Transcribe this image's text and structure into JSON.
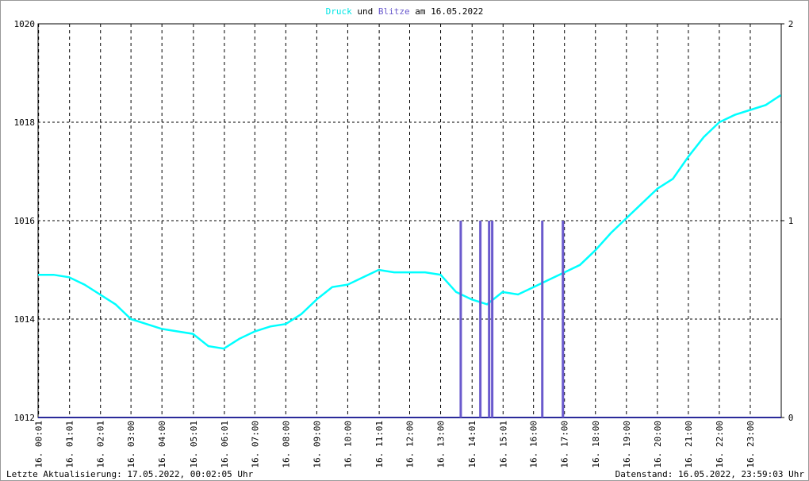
{
  "chart_data": {
    "type": "line",
    "title_connector": "und",
    "title_date": "am 16.05.2022",
    "footer_left": "Letzte Aktualisierung: 17.05.2022, 00:02:05 Uhr",
    "footer_right": "Datenstand: 16.05.2022, 23:59:03 Uhr",
    "grid": true,
    "xlim": [
      0,
      1440
    ],
    "xticks": [
      {
        "value": 1,
        "label": "16. 00:01"
      },
      {
        "value": 61,
        "label": "16. 01:01"
      },
      {
        "value": 121,
        "label": "16. 02:01"
      },
      {
        "value": 180,
        "label": "16. 03:00"
      },
      {
        "value": 240,
        "label": "16. 04:00"
      },
      {
        "value": 301,
        "label": "16. 05:01"
      },
      {
        "value": 361,
        "label": "16. 06:01"
      },
      {
        "value": 420,
        "label": "16. 07:00"
      },
      {
        "value": 480,
        "label": "16. 08:00"
      },
      {
        "value": 540,
        "label": "16. 09:00"
      },
      {
        "value": 600,
        "label": "16. 10:00"
      },
      {
        "value": 661,
        "label": "16. 11:01"
      },
      {
        "value": 720,
        "label": "16. 12:00"
      },
      {
        "value": 780,
        "label": "16. 13:00"
      },
      {
        "value": 841,
        "label": "16. 14:01"
      },
      {
        "value": 901,
        "label": "16. 15:01"
      },
      {
        "value": 960,
        "label": "16. 16:00"
      },
      {
        "value": 1020,
        "label": "16. 17:00"
      },
      {
        "value": 1080,
        "label": "16. 18:00"
      },
      {
        "value": 1140,
        "label": "16. 19:00"
      },
      {
        "value": 1200,
        "label": "16. 20:00"
      },
      {
        "value": 1260,
        "label": "16. 21:00"
      },
      {
        "value": 1320,
        "label": "16. 22:00"
      },
      {
        "value": 1380,
        "label": "16. 23:00"
      }
    ],
    "ylim": [
      1012,
      1020
    ],
    "yticks": [
      1012,
      1014,
      1016,
      1018,
      1020
    ],
    "y2lim": [
      0,
      2
    ],
    "y2ticks": [
      0,
      1,
      2
    ],
    "series": [
      {
        "name": "Druck",
        "color": "#00ffff",
        "x": [
          0,
          30,
          60,
          90,
          120,
          150,
          180,
          210,
          240,
          270,
          300,
          330,
          360,
          390,
          420,
          450,
          480,
          510,
          540,
          570,
          600,
          630,
          660,
          690,
          720,
          750,
          780,
          810,
          840,
          870,
          900,
          930,
          960,
          990,
          1020,
          1050,
          1080,
          1110,
          1140,
          1170,
          1200,
          1230,
          1260,
          1290,
          1320,
          1350,
          1380,
          1410,
          1439
        ],
        "values": [
          1014.9,
          1014.9,
          1014.85,
          1014.7,
          1014.5,
          1014.3,
          1014.0,
          1013.9,
          1013.8,
          1013.75,
          1013.7,
          1013.45,
          1013.4,
          1013.6,
          1013.75,
          1013.85,
          1013.9,
          1014.1,
          1014.4,
          1014.65,
          1014.7,
          1014.85,
          1015.0,
          1014.95,
          1014.95,
          1014.95,
          1014.9,
          1014.55,
          1014.4,
          1014.3,
          1014.55,
          1014.5,
          1014.65,
          1014.8,
          1014.95,
          1015.1,
          1015.4,
          1015.75,
          1016.05,
          1016.35,
          1016.65,
          1016.85,
          1017.3,
          1017.7,
          1018.0,
          1018.15,
          1018.25,
          1018.35,
          1018.55
        ]
      },
      {
        "name": "Blitze",
        "color": "#6a5acd",
        "axis": "y2",
        "x": [
          819,
          857,
          874,
          880,
          977,
          1017
        ],
        "values": [
          1,
          1,
          1,
          1,
          1,
          1
        ]
      }
    ]
  }
}
